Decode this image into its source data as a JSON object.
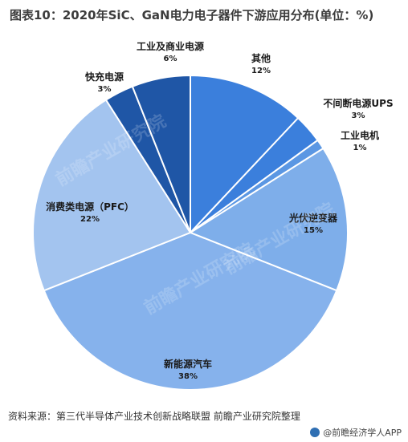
{
  "header": {
    "title": "图表10：2020年SiC、GaN电力电子器件下游应用分布(单位：%)"
  },
  "footer": {
    "source": "资料来源：第三代半导体产业技术创新战略联盟 前瞻产业研究院整理",
    "brand": "@前瞻经济学人APP"
  },
  "watermark": {
    "text": "前瞻产业研究院"
  },
  "colors": {
    "dark_blue": "#1f56a6",
    "mid_blue": "#3b7fdc",
    "light_blue": "#7eaeea",
    "pale_blue": "#a3c4ef",
    "title_gray": "#3c3c3c"
  },
  "chart_data": {
    "type": "pie",
    "title": "2020年SiC、GaN电力电子器件下游应用分布(单位：%)",
    "slices": [
      {
        "label": "其他",
        "value": 12,
        "display": "12%",
        "color": "#3b7fdc"
      },
      {
        "label": "不间断电源UPS",
        "value": 3,
        "display": "3%",
        "color": "#3b7fdc"
      },
      {
        "label": "工业电机",
        "value": 1,
        "display": "1%",
        "color": "#5b97e3"
      },
      {
        "label": "光伏逆变器",
        "value": 15,
        "display": "15%",
        "color": "#7eaeea"
      },
      {
        "label": "新能源汽车",
        "value": 38,
        "display": "38%",
        "color": "#86b2ec"
      },
      {
        "label": "消费类电源（PFC）",
        "value": 22,
        "display": "22%",
        "color": "#a3c4ef"
      },
      {
        "label": "快充电源",
        "value": 3,
        "display": "3%",
        "color": "#1f56a6"
      },
      {
        "label": "工业及商业电源",
        "value": 6,
        "display": "6%",
        "color": "#1f56a6"
      }
    ],
    "legend": "none"
  }
}
